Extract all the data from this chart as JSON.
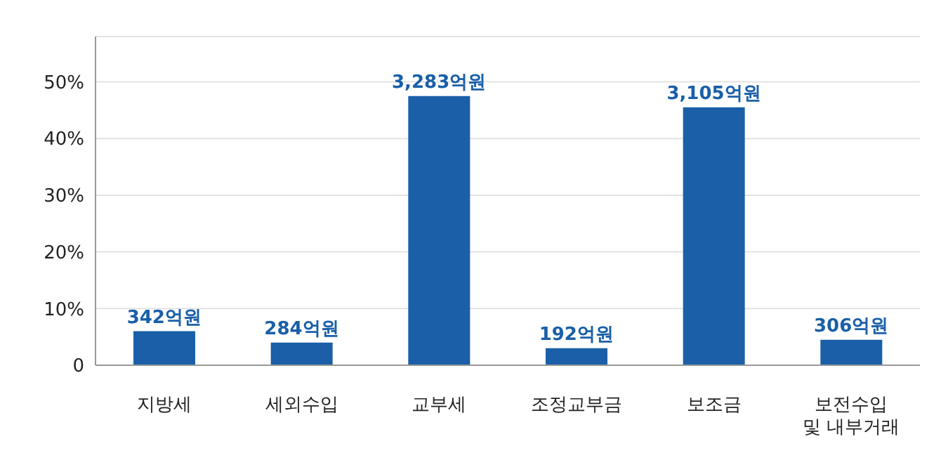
{
  "chart_data": {
    "type": "bar",
    "categories": [
      "지방세",
      "세외수입",
      "교부세",
      "조정교부금",
      "보조금",
      "보전수입 및 내부거래"
    ],
    "values": [
      6,
      4,
      47.5,
      3,
      45.5,
      4.5
    ],
    "annotations": [
      {
        "text": "342억원",
        "x": "지방세",
        "y": 6
      },
      {
        "text": "284억원",
        "x": "세외수입",
        "y": 4
      },
      {
        "text": "3,283억원",
        "x": "교부세",
        "y": 47.5
      },
      {
        "text": "192억원",
        "x": "조정교부금",
        "y": 3
      },
      {
        "text": "3,105억원",
        "x": "보조금",
        "y": 45.5
      },
      {
        "text": "306억원",
        "x": "보전수입 및 내부거래",
        "y": 4.5
      }
    ],
    "color": "#1a5fa8",
    "ylim": [
      0,
      58
    ],
    "yticks": [
      {
        "value": 0,
        "label": "0"
      },
      {
        "value": 10,
        "label": "10%"
      },
      {
        "value": 20,
        "label": "20%"
      },
      {
        "value": 30,
        "label": "30%"
      },
      {
        "value": 40,
        "label": "40%"
      },
      {
        "value": 50,
        "label": "50%"
      }
    ],
    "grid": "y"
  }
}
